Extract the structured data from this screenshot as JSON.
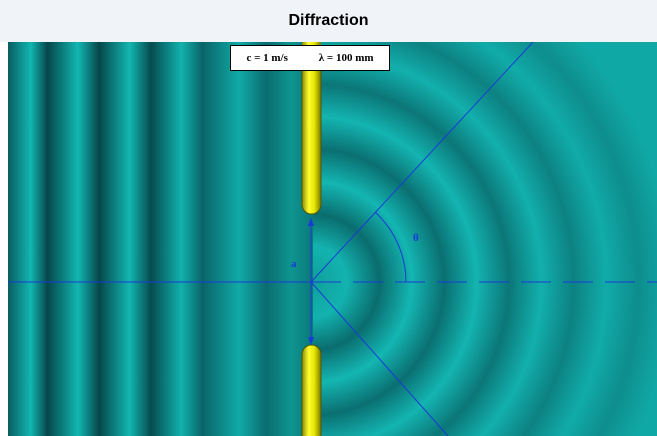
{
  "title": "Diffraction",
  "readouts": {
    "speed": "c = 1 m/s",
    "wavelength": "λ = 100 mm"
  },
  "labels": {
    "slit_width": "a",
    "angle": "θ"
  },
  "colors": {
    "wave_light": "#11b8b4",
    "wave_dark": "#07464a",
    "barrier": "#e6e600",
    "guide_lines": "#1a3ad8"
  }
}
